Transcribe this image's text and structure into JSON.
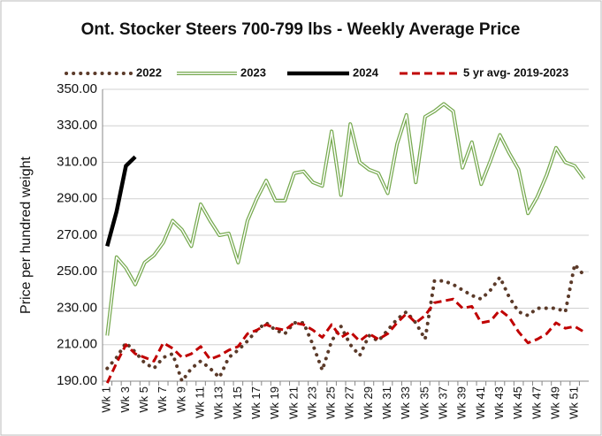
{
  "chart_data": {
    "type": "line",
    "title": "Ont. Stocker Steers 700-799 lbs - Weekly Average Price",
    "y_label": "Price per hundred weight",
    "categories": [
      "Wk 1",
      null,
      "Wk 3",
      null,
      "Wk 5",
      null,
      "Wk 7",
      null,
      "Wk 9",
      null,
      "Wk 11",
      null,
      "Wk 13",
      null,
      "Wk 15",
      null,
      "Wk 17",
      null,
      "Wk 19",
      null,
      "Wk 21",
      null,
      "Wk 23",
      null,
      "Wk 25",
      null,
      "Wk 27",
      null,
      "Wk 29",
      null,
      "Wk 31",
      null,
      "Wk 33",
      null,
      "Wk 35",
      null,
      "Wk 37",
      null,
      "Wk 39",
      null,
      "Wk 41",
      null,
      "Wk 43",
      null,
      "Wk 45",
      null,
      "Wk 47",
      null,
      "Wk 49",
      null,
      "Wk 51",
      null
    ],
    "ylim": [
      190,
      350
    ],
    "yticks": [
      {
        "value": 190,
        "label": "190.00"
      },
      {
        "value": 210,
        "label": "210.00"
      },
      {
        "value": 230,
        "label": "230.00"
      },
      {
        "value": 250,
        "label": "250.00"
      },
      {
        "value": 270,
        "label": "270.00"
      },
      {
        "value": 290,
        "label": "290.00"
      },
      {
        "value": 310,
        "label": "310.00"
      },
      {
        "value": 330,
        "label": "330.00"
      },
      {
        "value": 350,
        "label": "350.00"
      }
    ],
    "grid": true,
    "legend": "top",
    "series": [
      {
        "name": "2022",
        "color": "#5b3a29",
        "style": "dot",
        "values": [
          197,
          203,
          211,
          206,
          200,
          197,
          203,
          205,
          190,
          197,
          201,
          197,
          192,
          203,
          207,
          212,
          218,
          222,
          218,
          216,
          222,
          222,
          210,
          196,
          212,
          220,
          210,
          204,
          215,
          212,
          218,
          224,
          228,
          222,
          213,
          245,
          245,
          243,
          240,
          237,
          235,
          240,
          247,
          236,
          228,
          226,
          230,
          230,
          230,
          228,
          254,
          248
        ]
      },
      {
        "name": "2023",
        "color": "#76a94f",
        "style": "double",
        "values": [
          215,
          258,
          252,
          243,
          255,
          259,
          266,
          278,
          273,
          264,
          287,
          278,
          270,
          271,
          255,
          278,
          290,
          300,
          289,
          289,
          304,
          305,
          299,
          297,
          327,
          292,
          331,
          310,
          306,
          304,
          293,
          320,
          336,
          299,
          335,
          338,
          342,
          338,
          307,
          321,
          298,
          311,
          325,
          315,
          306,
          282,
          291,
          303,
          318,
          310,
          308,
          301
        ]
      },
      {
        "name": "2024",
        "color": "#000000",
        "style": "solid",
        "values": [
          264,
          283,
          308,
          313,
          null,
          null,
          null,
          null,
          null,
          null,
          null,
          null,
          null,
          null,
          null,
          null,
          null,
          null,
          null,
          null,
          null,
          null,
          null,
          null,
          null,
          null,
          null,
          null,
          null,
          null,
          null,
          null,
          null,
          null,
          null,
          null,
          null,
          null,
          null,
          null,
          null,
          null,
          null,
          null,
          null,
          null,
          null,
          null,
          null,
          null,
          null,
          null
        ]
      },
      {
        "name": "5 yr avg- 2019-2023",
        "color": "#c00000",
        "style": "dash",
        "values": [
          189,
          200,
          210,
          205,
          203,
          201,
          211,
          208,
          203,
          205,
          209,
          202,
          204,
          207,
          209,
          216,
          218,
          221,
          219,
          218,
          222,
          221,
          218,
          214,
          221,
          214,
          217,
          212,
          216,
          213,
          216,
          222,
          227,
          222,
          226,
          233,
          234,
          235,
          230,
          231,
          222,
          223,
          229,
          225,
          217,
          211,
          213,
          216,
          222,
          219,
          220,
          217
        ]
      }
    ]
  }
}
